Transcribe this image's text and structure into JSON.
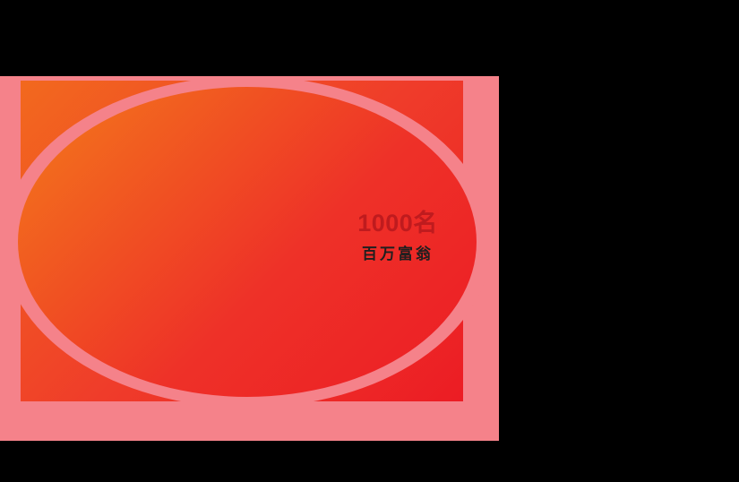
{
  "banner": {
    "winner_count": "1000名",
    "winner_title": "百万富翁",
    "colors": {
      "background": "#000000",
      "frame_pink": "#f5828a",
      "gradient_orange": "#f2691e",
      "gradient_red": "#ec1c24",
      "count_text": "#bf1b1e",
      "title_text": "#1f1f1f"
    }
  }
}
